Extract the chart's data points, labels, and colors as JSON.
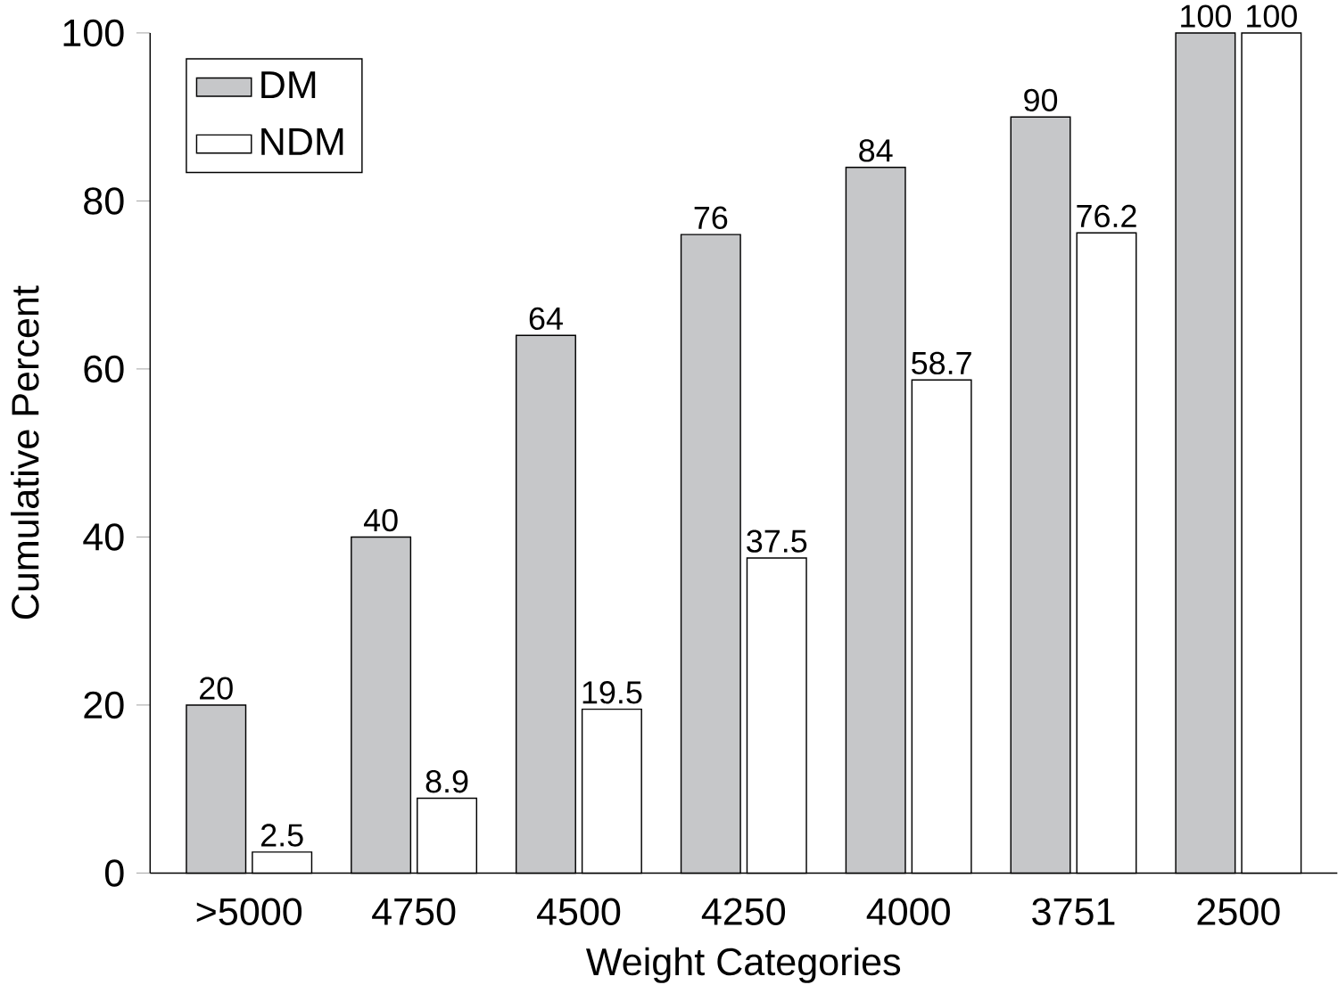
{
  "chart_data": {
    "type": "bar",
    "xlabel": "Weight Categories",
    "ylabel": "Cumulative Percent",
    "categories": [
      ">5000",
      "4750",
      "4500",
      "4250",
      "4000",
      "3751",
      "2500"
    ],
    "series": [
      {
        "name": "DM",
        "color": "#c6c7c9",
        "values": [
          20,
          40,
          64,
          76,
          84,
          90,
          100
        ]
      },
      {
        "name": "NDM",
        "color": "#ffffff",
        "values": [
          2.5,
          8.9,
          19.5,
          37.5,
          58.7,
          76.2,
          100
        ]
      }
    ],
    "ylim": [
      0,
      100
    ],
    "yticks": [
      0,
      20,
      40,
      60,
      80,
      100
    ],
    "data_labels": true,
    "legend": "top left",
    "grid": false
  }
}
